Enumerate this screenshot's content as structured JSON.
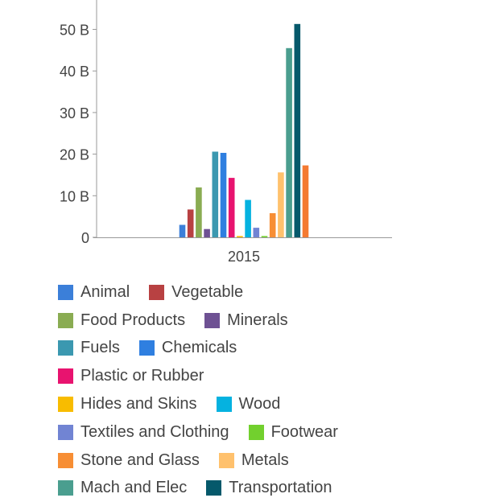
{
  "chart_data": {
    "type": "bar",
    "categories": [
      "2015"
    ],
    "series": [
      {
        "name": "Animal",
        "color": "#3b7fd9",
        "values": [
          3.0
        ]
      },
      {
        "name": "Vegetable",
        "color": "#b84142",
        "values": [
          6.7
        ]
      },
      {
        "name": "Food Products",
        "color": "#8aac52",
        "values": [
          12.0
        ]
      },
      {
        "name": "Minerals",
        "color": "#6e5193",
        "values": [
          2.0
        ]
      },
      {
        "name": "Fuels",
        "color": "#3b98b0",
        "values": [
          20.6
        ]
      },
      {
        "name": "Chemicals",
        "color": "#2f7fe0",
        "values": [
          20.3
        ]
      },
      {
        "name": "Plastic or Rubber",
        "color": "#e8136f",
        "values": [
          14.3
        ]
      },
      {
        "name": "Hides and Skins",
        "color": "#f8bc00",
        "values": [
          0.3
        ]
      },
      {
        "name": "Wood",
        "color": "#05b2e0",
        "values": [
          9.0
        ]
      },
      {
        "name": "Textiles and Clothing",
        "color": "#7184d3",
        "values": [
          2.3
        ]
      },
      {
        "name": "Footwear",
        "color": "#72d02e",
        "values": [
          0.3
        ]
      },
      {
        "name": "Stone and Glass",
        "color": "#f78e34",
        "values": [
          5.8
        ]
      },
      {
        "name": "Metals",
        "color": "#ffc16d",
        "values": [
          15.6
        ]
      },
      {
        "name": "Mach and Elec",
        "color": "#4a9e8f",
        "values": [
          45.5
        ]
      },
      {
        "name": "Transportation",
        "color": "#05596b",
        "values": [
          51.3
        ]
      },
      {
        "name": "",
        "color": "#f47a32",
        "values": [
          17.3
        ]
      }
    ],
    "y_ticks": [
      {
        "value": 0,
        "label": "0"
      },
      {
        "value": 10,
        "label": "10 B"
      },
      {
        "value": 20,
        "label": "20 B"
      },
      {
        "value": 30,
        "label": "30 B"
      },
      {
        "value": 40,
        "label": "40 B"
      },
      {
        "value": 50,
        "label": "50 B"
      }
    ],
    "ylim": [
      0,
      55
    ],
    "grid": false,
    "legend_placement": "bottom"
  },
  "legend_rows": [
    [
      0,
      1
    ],
    [
      2,
      3
    ],
    [
      4,
      5
    ],
    [
      6
    ],
    [
      7,
      8
    ],
    [
      9,
      10
    ],
    [
      11,
      12
    ],
    [
      13,
      14
    ]
  ]
}
